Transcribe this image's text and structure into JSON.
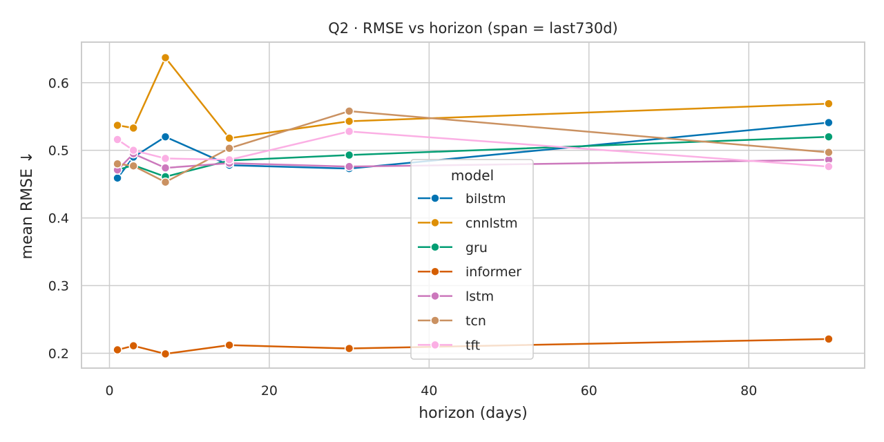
{
  "chart_data": {
    "type": "line",
    "title": "Q2 · RMSE vs horizon  (span = last730d)",
    "xlabel": "horizon (days)",
    "ylabel": "mean RMSE ↓",
    "xlim": [
      -3.5,
      94.5
    ],
    "ylim": [
      0.178,
      0.66
    ],
    "x_ticks": [
      0,
      20,
      40,
      60,
      80
    ],
    "y_ticks": [
      0.2,
      0.3,
      0.4,
      0.5,
      0.6
    ],
    "y_tick_labels": [
      "0.2",
      "0.3",
      "0.4",
      "0.5",
      "0.6"
    ],
    "grid": true,
    "legend": {
      "title": "model",
      "placement": "center"
    },
    "x": [
      1,
      3,
      7,
      15,
      30,
      90
    ],
    "series": [
      {
        "name": "bilstm",
        "color": "#0173b2",
        "values": [
          0.459,
          0.49,
          0.52,
          0.478,
          0.473,
          0.541
        ]
      },
      {
        "name": "cnnlstm",
        "color": "#de8f05",
        "values": [
          0.537,
          0.533,
          0.637,
          0.518,
          0.543,
          0.569
        ]
      },
      {
        "name": "gru",
        "color": "#029e73",
        "values": [
          0.471,
          0.478,
          0.461,
          0.485,
          0.493,
          0.52
        ]
      },
      {
        "name": "informer",
        "color": "#d55e00",
        "values": [
          0.205,
          0.211,
          0.199,
          0.212,
          0.207,
          0.221
        ]
      },
      {
        "name": "lstm",
        "color": "#cc78bc",
        "values": [
          0.471,
          0.495,
          0.474,
          0.481,
          0.476,
          0.486
        ]
      },
      {
        "name": "tcn",
        "color": "#ca9161",
        "values": [
          0.48,
          0.477,
          0.453,
          0.503,
          0.558,
          0.497
        ]
      },
      {
        "name": "tft",
        "color": "#fbafe4",
        "values": [
          0.516,
          0.5,
          0.488,
          0.486,
          0.528,
          0.476
        ]
      }
    ]
  }
}
